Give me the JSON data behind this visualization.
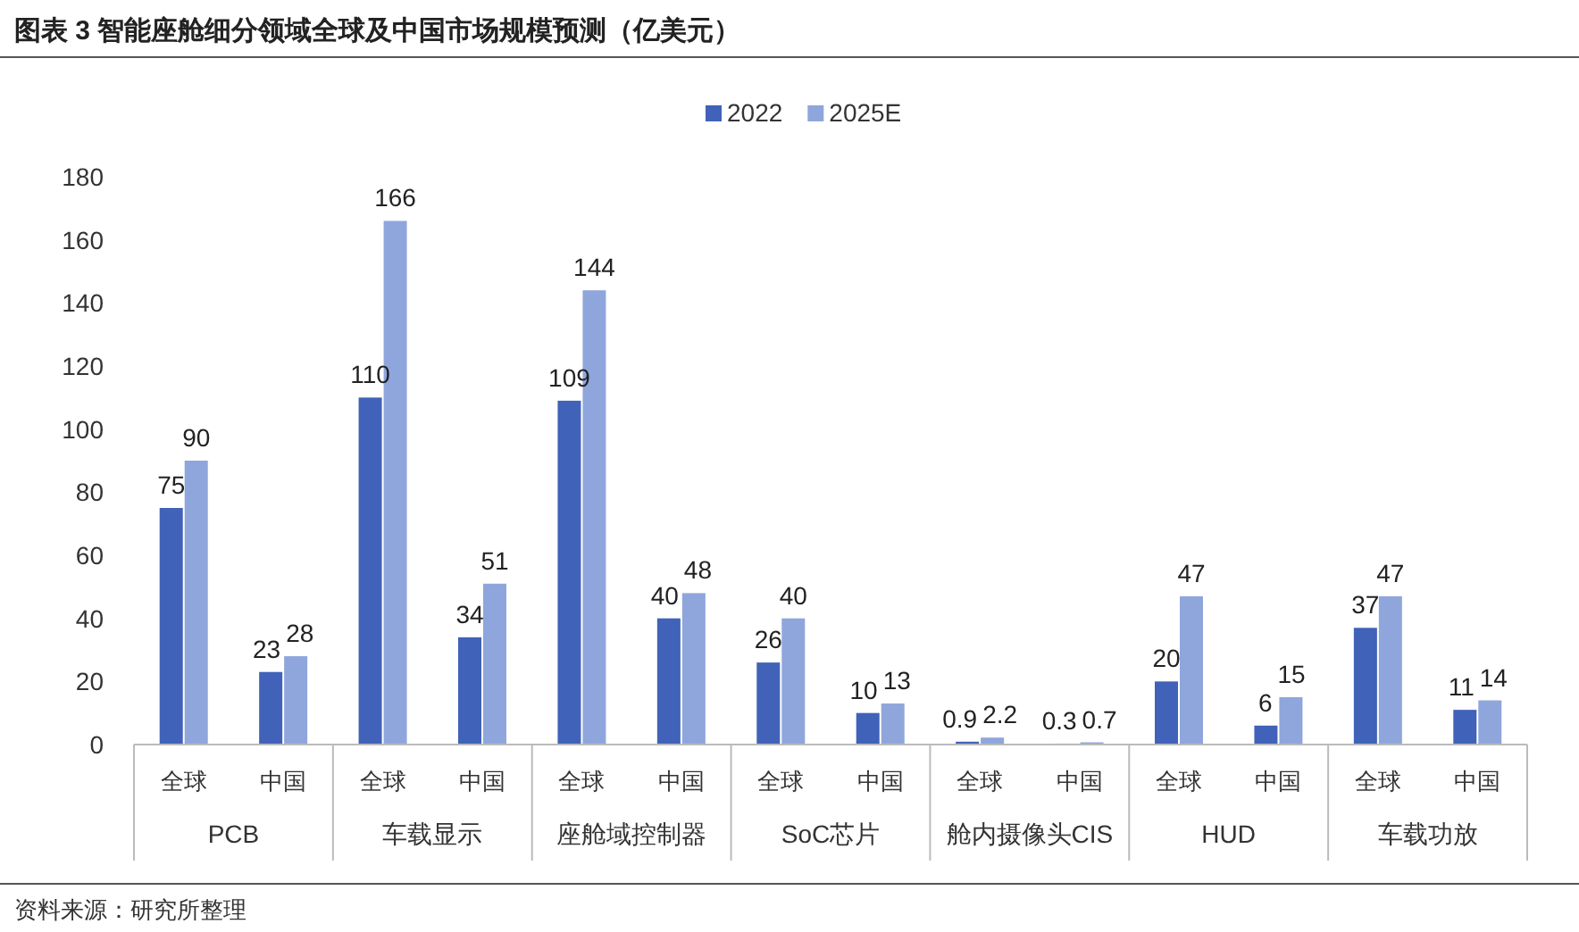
{
  "chart_data": {
    "type": "bar",
    "title": "图表 3  智能座舱细分领域全球及中国市场规模预测（亿美元）",
    "categories": [
      "全球",
      "中国",
      "全球",
      "中国",
      "全球",
      "中国",
      "全球",
      "中国",
      "全球",
      "中国",
      "全球",
      "中国",
      "全球",
      "中国"
    ],
    "series": [
      {
        "name": "2022",
        "color": "#4062b8",
        "values": [
          75,
          23,
          110,
          34,
          109,
          40,
          26,
          10,
          0.9,
          0.3,
          20,
          6,
          37,
          11
        ]
      },
      {
        "name": "2025E",
        "color": "#8fa6dc",
        "values": [
          90,
          28,
          166,
          51,
          144,
          48,
          40,
          13,
          2.2,
          0.7,
          47,
          15,
          47,
          14
        ]
      }
    ],
    "annotations": [
      "PCB",
      "车载显示",
      "座舱域控制器",
      "SoC芯片",
      "舱内摄像头CIS",
      "HUD",
      "车载功放",
      "资料来源：研究所整理"
    ],
    "ylim": [
      0,
      180
    ],
    "yticks": [
      0,
      20,
      40,
      60,
      80,
      100,
      120,
      140,
      160,
      180
    ],
    "data_labels": true,
    "legend": "top",
    "grid": false
  }
}
